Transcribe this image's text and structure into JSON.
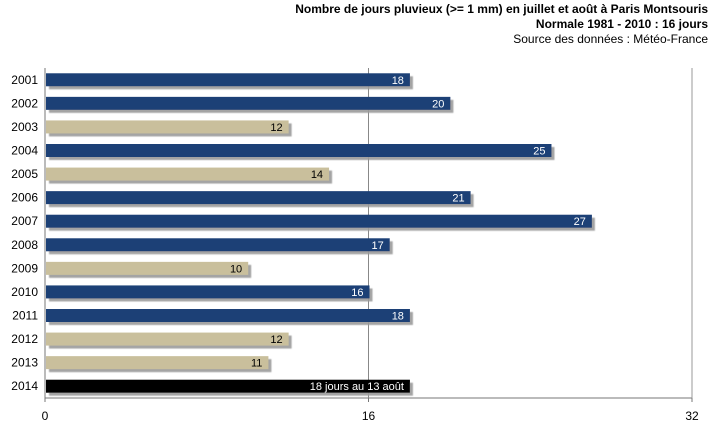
{
  "chart_data": {
    "type": "bar",
    "orientation": "horizontal",
    "title": "Nombre de jours pluvieux  (>= 1 mm) en juillet  et août à Paris Montsouris",
    "subtitle": "Normale 1981 - 2010 : 16 jours",
    "source": "Source des données : Météo-France",
    "categories": [
      "2001",
      "2002",
      "2003",
      "2004",
      "2005",
      "2006",
      "2007",
      "2008",
      "2009",
      "2010",
      "2011",
      "2012",
      "2013",
      "2014"
    ],
    "values": [
      18,
      20,
      12,
      25,
      14,
      21,
      27,
      17,
      10,
      16,
      18,
      12,
      11,
      18
    ],
    "data_labels": [
      "18",
      "20",
      "12",
      "25",
      "14",
      "21",
      "27",
      "17",
      "10",
      "16",
      "18",
      "12",
      "11",
      "18 jours au 13 août"
    ],
    "bar_colors": [
      "#1f3f76",
      "#1f3f76",
      "#c9bf9c",
      "#1f3f76",
      "#c9bf9c",
      "#1f3f76",
      "#1f3f76",
      "#1f3f76",
      "#c9bf9c",
      "#1f3f76",
      "#1f3f76",
      "#c9bf9c",
      "#c9bf9c",
      "#000000"
    ],
    "label_colors": [
      "#ffffff",
      "#ffffff",
      "#000000",
      "#ffffff",
      "#000000",
      "#ffffff",
      "#ffffff",
      "#ffffff",
      "#000000",
      "#ffffff",
      "#ffffff",
      "#000000",
      "#000000",
      "#ffffff"
    ],
    "xlim": [
      0,
      32
    ],
    "xticks": [
      0,
      16,
      32
    ],
    "reference_line": 16,
    "grid": false
  }
}
